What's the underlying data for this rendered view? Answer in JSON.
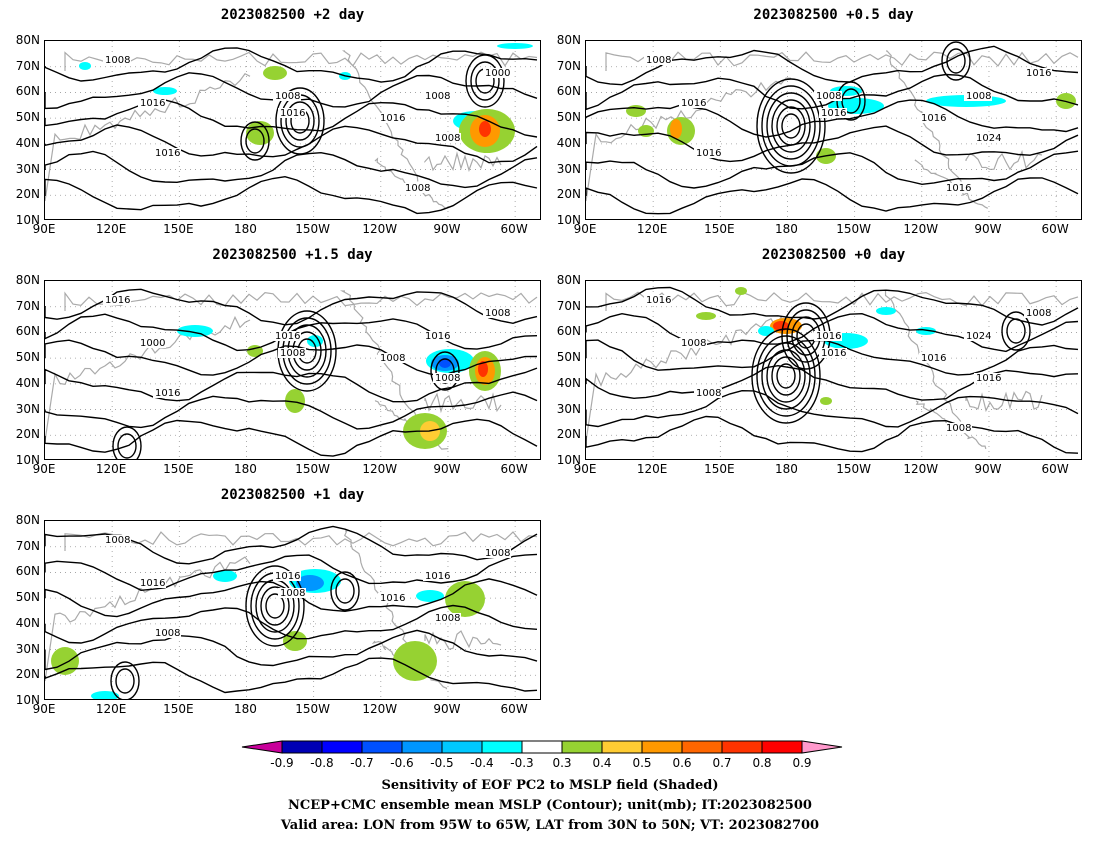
{
  "panels": [
    {
      "id": "p1",
      "title": "2023082500 +2 day",
      "labels": [
        "1008",
        "1016",
        "1008",
        "1016",
        "1000",
        "1008",
        "1016",
        "1008",
        "1016",
        "1008"
      ]
    },
    {
      "id": "p2",
      "title": "2023082500 +0.5 day",
      "labels": [
        "1008",
        "1016",
        "1008",
        "1016",
        "1016",
        "1008",
        "1016",
        "1024",
        "1016",
        "1016"
      ]
    },
    {
      "id": "p3",
      "title": "2023082500 +1.5 day",
      "labels": [
        "1016",
        "1000",
        "1016",
        "1008",
        "1008",
        "1016",
        "1008",
        "1008",
        "1016"
      ]
    },
    {
      "id": "p4",
      "title": "2023082500 +0 day",
      "labels": [
        "1016",
        "1008",
        "1016",
        "1016",
        "1008",
        "1024",
        "1016",
        "1016",
        "1008",
        "1008"
      ]
    },
    {
      "id": "p5",
      "title": "2023082500 +1 day",
      "labels": [
        "1008",
        "1016",
        "1016",
        "1008",
        "1008",
        "1016",
        "1016",
        "1008",
        "1008"
      ]
    }
  ],
  "lat_ticks": [
    "80N",
    "70N",
    "60N",
    "50N",
    "40N",
    "30N",
    "20N",
    "10N"
  ],
  "lon_ticks": [
    "90E",
    "120E",
    "150E",
    "180",
    "150W",
    "120W",
    "90W",
    "60W"
  ],
  "colorbar": {
    "labels": [
      "-0.9",
      "-0.8",
      "-0.7",
      "-0.6",
      "-0.5",
      "-0.4",
      "-0.3",
      "0.3",
      "0.4",
      "0.5",
      "0.6",
      "0.7",
      "0.8",
      "0.9"
    ],
    "colors": [
      "#c8009a",
      "#0000b4",
      "#0000ff",
      "#0050ff",
      "#0096ff",
      "#00c8ff",
      "#00ffff",
      "#ffffff",
      "#96d232",
      "#ffcc33",
      "#ff9900",
      "#ff6600",
      "#ff3300",
      "#ff0000",
      "#ff99cc"
    ]
  },
  "caption": {
    "line1": "Sensitivity of EOF PC2 to MSLP field (Shaded)",
    "line2": "NCEP+CMC ensemble mean MSLP (Contour); unit(mb); IT:2023082500",
    "line3": "Valid area: LON from 95W to 65W, LAT from 30N to 50N; VT: 2023082700"
  }
}
